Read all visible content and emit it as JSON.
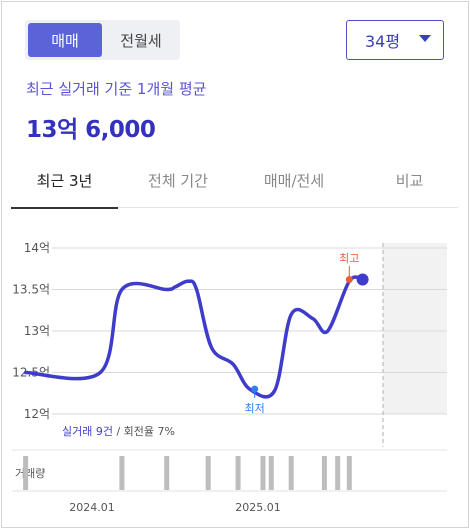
{
  "trade_toggle": {
    "options": [
      "매매",
      "전월세"
    ],
    "selected": "매매"
  },
  "area_dropdown": {
    "selected": "34평"
  },
  "summary": {
    "label": "최근 실거래 기준 1개월 평균",
    "value": "13억 6,000"
  },
  "tabs": [
    {
      "label": "최근 3년",
      "active": true
    },
    {
      "label": "전체 기간",
      "active": false
    },
    {
      "label": "매매/전세",
      "active": false
    },
    {
      "label": "비교",
      "active": false
    }
  ],
  "chart_data": {
    "type": "line",
    "title": "",
    "xlabel": "",
    "ylabel": "",
    "y_tick_labels": [
      "14억",
      "13.5억",
      "13억",
      "12.5억",
      "12억"
    ],
    "y_tick_values": [
      14,
      13.5,
      13,
      12.5,
      12
    ],
    "x_tick_labels": [
      "2024.01",
      "2025.01"
    ],
    "ylim": [
      12,
      14
    ],
    "series": [
      {
        "values": [
          [
            2023.6,
            12.5
          ],
          [
            2024.05,
            12.5
          ],
          [
            2024.18,
            13.5
          ],
          [
            2024.45,
            13.5
          ],
          [
            2024.5,
            13.53
          ],
          [
            2024.58,
            13.6
          ],
          [
            2024.63,
            13.5
          ],
          [
            2024.72,
            12.8
          ],
          [
            2024.85,
            12.6
          ],
          [
            2024.95,
            12.3
          ],
          [
            2025.1,
            12.28
          ],
          [
            2025.2,
            13.2
          ],
          [
            2025.33,
            13.15
          ],
          [
            2025.42,
            13.0
          ],
          [
            2025.55,
            13.6
          ],
          [
            2025.63,
            13.62
          ]
        ],
        "color": "#3f3ccc"
      }
    ],
    "annotations": {
      "high_label": "최고",
      "low_label": "최저",
      "high_value": 13.62,
      "low_value": 12.3
    },
    "volume_label": "거래량",
    "volume_bars": [
      2023.6,
      2024.18,
      2024.45,
      2024.7,
      2024.88,
      2025.03,
      2025.08,
      2025.2,
      2025.4,
      2025.48,
      2025.55
    ],
    "grid": true,
    "legend": "none"
  },
  "stats": {
    "trades": "실거래 9건",
    "separator": " / ",
    "turnover": "회전율 7%"
  },
  "colors": {
    "accent": "#3f3ccc",
    "high": "#e95d3b",
    "low": "#2f80ed"
  }
}
